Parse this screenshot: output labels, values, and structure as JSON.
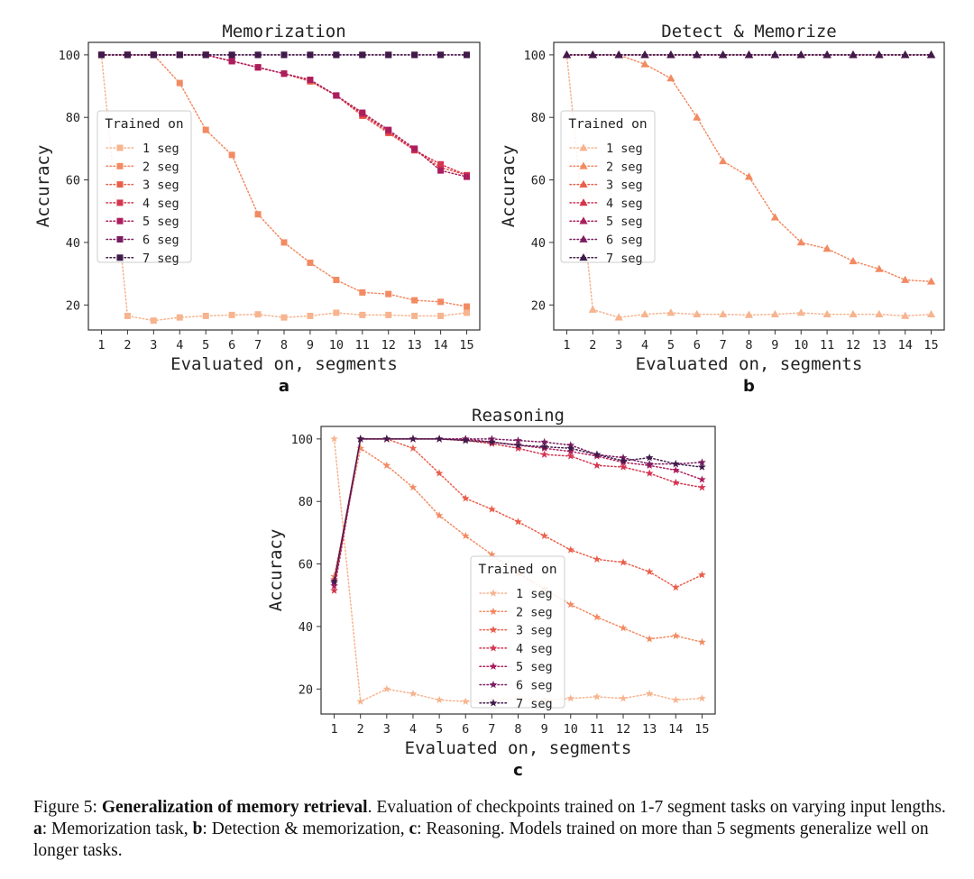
{
  "palette": [
    "#f6b48f",
    "#f28a62",
    "#ea5f4c",
    "#d4354f",
    "#ab1e5d",
    "#7a1d60",
    "#3f1a4a"
  ],
  "caption": {
    "figure_label": "Figure 5:",
    "bold_title": "Generalization of memory retrieval",
    "s1": ". Evaluation of checkpoints trained on 1-7 segment tasks on varying input lengths. ",
    "a_label": "a",
    "a_text": ": Memorization task, ",
    "b_label": "b",
    "b_text": ": Detection & memorization, ",
    "c_label": "c",
    "c_text": ": Reasoning. Models trained on more than 5 segments generalize well on longer tasks."
  },
  "chart_data": [
    {
      "panel_label": "a",
      "type": "line",
      "marker": "square",
      "title": "Memorization",
      "xlabel": "Evaluated on, segments",
      "ylabel": "Accuracy",
      "x": [
        1,
        2,
        3,
        4,
        5,
        6,
        7,
        8,
        9,
        10,
        11,
        12,
        13,
        14,
        15
      ],
      "xlim": [
        0.5,
        15.5
      ],
      "ylim": [
        12,
        104
      ],
      "yticks": [
        20,
        40,
        60,
        80,
        100
      ],
      "grid": false,
      "legend": {
        "title": "Trained on",
        "placement": "center-left"
      },
      "series": [
        {
          "name": "1 seg",
          "values": [
            100,
            16.5,
            15,
            16,
            16.5,
            16.8,
            17,
            16,
            16.5,
            17.5,
            16.8,
            16.8,
            16.5,
            16.5,
            17.5
          ]
        },
        {
          "name": "2 seg",
          "values": [
            100,
            100,
            100,
            91,
            76,
            68,
            49,
            40,
            33.5,
            28,
            24,
            23.5,
            21.5,
            21,
            19.5
          ]
        },
        {
          "name": "3 seg",
          "values": [
            100,
            100,
            100,
            100,
            100,
            98,
            96,
            94,
            91.5,
            87,
            80.5,
            75,
            69.5,
            64,
            61.5
          ]
        },
        {
          "name": "4 seg",
          "values": [
            100,
            100,
            100,
            100,
            100,
            98,
            96,
            94,
            92,
            87,
            81,
            75.5,
            69.5,
            65,
            61.5
          ]
        },
        {
          "name": "5 seg",
          "values": [
            100,
            100,
            100,
            100,
            100,
            98,
            96,
            94,
            92,
            87,
            81.5,
            76,
            70,
            63,
            61
          ]
        },
        {
          "name": "6 seg",
          "values": [
            100,
            100,
            100,
            100,
            100,
            100,
            100,
            100,
            100,
            100,
            100,
            100,
            100,
            100,
            100
          ]
        },
        {
          "name": "7 seg",
          "values": [
            100,
            100,
            100,
            100,
            100,
            100,
            100,
            100,
            100,
            100,
            100,
            100,
            100,
            100,
            100
          ]
        }
      ]
    },
    {
      "panel_label": "b",
      "type": "line",
      "marker": "triangle",
      "title": "Detect & Memorize",
      "xlabel": "Evaluated on, segments",
      "ylabel": "Accuracy",
      "x": [
        1,
        2,
        3,
        4,
        5,
        6,
        7,
        8,
        9,
        10,
        11,
        12,
        13,
        14,
        15
      ],
      "xlim": [
        0.5,
        15.5
      ],
      "ylim": [
        12,
        104
      ],
      "yticks": [
        20,
        40,
        60,
        80,
        100
      ],
      "grid": false,
      "legend": {
        "title": "Trained on",
        "placement": "center-left"
      },
      "series": [
        {
          "name": "1 seg",
          "values": [
            100,
            18.5,
            16,
            17,
            17.5,
            17,
            17,
            16.8,
            17,
            17.5,
            17,
            17,
            17,
            16.5,
            17
          ]
        },
        {
          "name": "2 seg",
          "values": [
            100,
            100,
            100,
            97,
            92.5,
            80,
            66,
            61,
            48,
            40,
            38,
            34,
            31.5,
            28,
            27.5
          ]
        },
        {
          "name": "3 seg",
          "values": [
            100,
            100,
            100,
            100,
            100,
            100,
            100,
            100,
            100,
            100,
            100,
            100,
            100,
            100,
            100
          ]
        },
        {
          "name": "4 seg",
          "values": [
            100,
            100,
            100,
            100,
            100,
            100,
            100,
            100,
            100,
            100,
            100,
            100,
            100,
            100,
            100
          ]
        },
        {
          "name": "5 seg",
          "values": [
            100,
            100,
            100,
            100,
            100,
            100,
            100,
            100,
            100,
            100,
            100,
            100,
            100,
            100,
            100
          ]
        },
        {
          "name": "6 seg",
          "values": [
            100,
            100,
            100,
            100,
            100,
            100,
            100,
            100,
            100,
            100,
            100,
            100,
            100,
            100,
            100
          ]
        },
        {
          "name": "7 seg",
          "values": [
            100,
            100,
            100,
            100,
            100,
            100,
            100,
            100,
            100,
            100,
            100,
            100,
            100,
            100,
            100
          ]
        }
      ]
    },
    {
      "panel_label": "c",
      "type": "line",
      "marker": "star",
      "title": "Reasoning",
      "xlabel": "Evaluated on, segments",
      "ylabel": "Accuracy",
      "x": [
        1,
        2,
        3,
        4,
        5,
        6,
        7,
        8,
        9,
        10,
        11,
        12,
        13,
        14,
        15
      ],
      "xlim": [
        0.5,
        15.5
      ],
      "ylim": [
        12,
        104
      ],
      "yticks": [
        20,
        40,
        60,
        80,
        100
      ],
      "grid": false,
      "legend": {
        "title": "Trained on",
        "placement": "lower-center"
      },
      "series": [
        {
          "name": "1 seg",
          "values": [
            100,
            16,
            20,
            18.5,
            16.5,
            16,
            16.5,
            17,
            16.5,
            17,
            17.5,
            17,
            18.5,
            16.5,
            17
          ]
        },
        {
          "name": "2 seg",
          "values": [
            56,
            97,
            91.5,
            84.5,
            75.5,
            69,
            63,
            57,
            52,
            47,
            43,
            39.5,
            36,
            37,
            35
          ]
        },
        {
          "name": "3 seg",
          "values": [
            55,
            100,
            100,
            97,
            89,
            81,
            77.5,
            73.5,
            69,
            64.5,
            61.5,
            60.5,
            57.5,
            52.5,
            56.5
          ]
        },
        {
          "name": "4 seg",
          "values": [
            51.5,
            100,
            100,
            100,
            100,
            99.5,
            98.5,
            97,
            95,
            94.5,
            91.5,
            91,
            89,
            86,
            84.5
          ]
        },
        {
          "name": "5 seg",
          "values": [
            53,
            100,
            100,
            100,
            100,
            100,
            99,
            98,
            97,
            96,
            94.5,
            92.5,
            91.5,
            90,
            87
          ]
        },
        {
          "name": "6 seg",
          "values": [
            54,
            100,
            100,
            100,
            100,
            100,
            100,
            99.5,
            99,
            98,
            95,
            94,
            92,
            92,
            92.5
          ]
        },
        {
          "name": "7 seg",
          "values": [
            54.5,
            100,
            100,
            100,
            100,
            99.5,
            99,
            98,
            97.5,
            97,
            95,
            93,
            94,
            92,
            91
          ]
        }
      ]
    }
  ]
}
